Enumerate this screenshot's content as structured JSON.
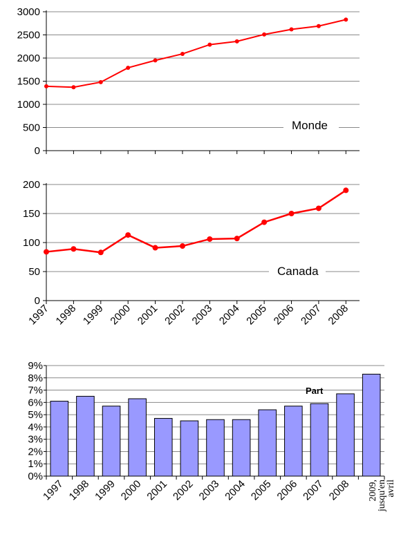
{
  "chart_data": [
    {
      "type": "line",
      "label": "Monde",
      "x": [
        "1997",
        "1998",
        "1999",
        "2000",
        "2001",
        "2002",
        "2003",
        "2004",
        "2005",
        "2006",
        "2007",
        "2008"
      ],
      "values": [
        1390,
        1370,
        1480,
        1790,
        1950,
        2090,
        2290,
        2360,
        2510,
        2620,
        2690,
        2830
      ],
      "ylim": [
        0,
        3000
      ],
      "yticks": [
        "0",
        "500",
        "1000",
        "1500",
        "2000",
        "2500",
        "3000"
      ],
      "grid": true,
      "color": "#ff0000"
    },
    {
      "type": "line",
      "label": "Canada",
      "x": [
        "1997",
        "1998",
        "1999",
        "2000",
        "2001",
        "2002",
        "2003",
        "2004",
        "2005",
        "2006",
        "2007",
        "2008"
      ],
      "values": [
        84,
        89,
        83,
        113,
        91,
        94,
        106,
        107,
        135,
        150,
        159,
        190
      ],
      "ylim": [
        0,
        200
      ],
      "yticks": [
        "0",
        "50",
        "100",
        "150",
        "200"
      ],
      "grid": true,
      "color": "#ff0000"
    },
    {
      "type": "bar",
      "label": "Part",
      "categories": [
        "1997",
        "1998",
        "1999",
        "2000",
        "2001",
        "2002",
        "2003",
        "2004",
        "2005",
        "2006",
        "2007",
        "2008",
        "2009, jusqu'en avril"
      ],
      "values": [
        6.1,
        6.5,
        5.7,
        6.3,
        4.7,
        4.5,
        4.6,
        4.6,
        5.4,
        5.7,
        5.9,
        6.7,
        8.3
      ],
      "ylim": [
        0,
        9
      ],
      "yticks": [
        "0%",
        "1%",
        "2%",
        "3%",
        "4%",
        "5%",
        "6%",
        "7%",
        "8%",
        "9%"
      ],
      "grid": true,
      "color": "#9999ff"
    }
  ]
}
